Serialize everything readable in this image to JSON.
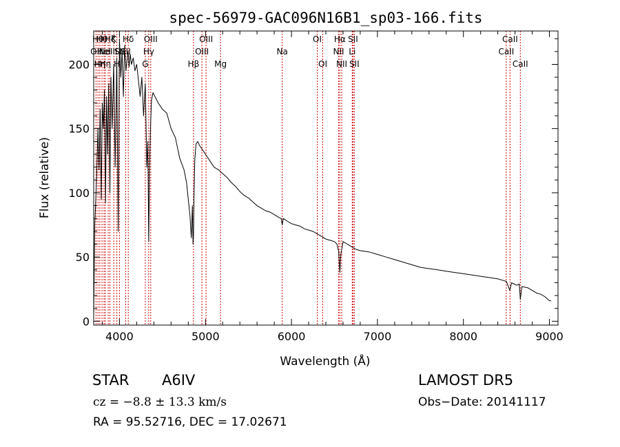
{
  "chart_data": {
    "type": "line",
    "title": "spec-56979-GAC096N16B1_sp03-166.fits",
    "xlabel": "Wavelength (Å)",
    "ylabel": "Flux (relative)",
    "xlim": [
      3700,
      9100
    ],
    "ylim": [
      -3,
      226
    ],
    "xticks": [
      4000,
      5000,
      6000,
      7000,
      8000,
      9000
    ],
    "yticks": [
      0,
      50,
      100,
      150,
      200
    ],
    "grid": false,
    "series": [
      {
        "x": [
          3700,
          3712,
          3725,
          3738,
          3750,
          3762,
          3775,
          3788,
          3800,
          3812,
          3825,
          3838,
          3850,
          3862,
          3875,
          3888,
          3900,
          3915,
          3932,
          3950,
          3968,
          3985,
          4000,
          4015,
          4030,
          4045,
          4060,
          4075,
          4090,
          4100,
          4112,
          4125,
          4140,
          4160,
          4180,
          4200,
          4220,
          4240,
          4260,
          4280,
          4300,
          4318,
          4330,
          4340,
          4350,
          4360,
          4372,
          4390,
          4420,
          4450,
          4500,
          4550,
          4600,
          4650,
          4700,
          4750,
          4780,
          4800,
          4820,
          4835,
          4848,
          4855,
          4861,
          4867,
          4875,
          4890,
          4910,
          4930,
          4960,
          5000,
          5050,
          5100,
          5150,
          5200,
          5250,
          5300,
          5350,
          5400,
          5450,
          5500,
          5550,
          5600,
          5650,
          5700,
          5750,
          5800,
          5850,
          5880,
          5893,
          5905,
          5950,
          6000,
          6050,
          6100,
          6150,
          6200,
          6250,
          6300,
          6350,
          6400,
          6450,
          6500,
          6530,
          6550,
          6563,
          6575,
          6600,
          6650,
          6700,
          6750,
          6800,
          6900,
          7000,
          7100,
          7200,
          7300,
          7400,
          7500,
          7600,
          7700,
          7800,
          7900,
          8000,
          8100,
          8200,
          8300,
          8400,
          8450,
          8500,
          8540,
          8560,
          8620,
          8650,
          8662,
          8680,
          8750,
          8800,
          8850,
          8900,
          8950,
          9000,
          9020
        ],
        "y": [
          3,
          75,
          95,
          120,
          150,
          118,
          165,
          95,
          170,
          150,
          180,
          92,
          175,
          130,
          185,
          100,
          190,
          150,
          200,
          120,
          205,
          70,
          220,
          190,
          210,
          175,
          215,
          195,
          205,
          210,
          198,
          208,
          200,
          205,
          195,
          200,
          188,
          175,
          190,
          160,
          185,
          120,
          140,
          62,
          120,
          150,
          172,
          178,
          174,
          170,
          165,
          162,
          150,
          143,
          127,
          118,
          108,
          95,
          82,
          65,
          90,
          60,
          67,
          100,
          125,
          138,
          140,
          137,
          134,
          130,
          125,
          120,
          118,
          115,
          112,
          108,
          105,
          101,
          98,
          96,
          93,
          90,
          88,
          86,
          85,
          83,
          81,
          80,
          75,
          80,
          78,
          76,
          75,
          74,
          72,
          71,
          70,
          68,
          66,
          64,
          63,
          62,
          60,
          54,
          38,
          52,
          62,
          60,
          58,
          56,
          55,
          54,
          52,
          50,
          48,
          46,
          44,
          42,
          41,
          40,
          39,
          38,
          37,
          36,
          35,
          34,
          33,
          32,
          31,
          24,
          30,
          28,
          29,
          17,
          27,
          26,
          24,
          22,
          21,
          19,
          16,
          16
        ]
      }
    ],
    "line_labels": [
      {
        "x": 3727,
        "label": "OII",
        "row": 1
      },
      {
        "x": 3750,
        "label": "Hθ",
        "row": 0
      },
      {
        "x": 3771,
        "label": "Hη",
        "row": 2
      },
      {
        "x": 3797,
        "label": "Hθ",
        "row": 0
      },
      {
        "x": 3820,
        "label": "HeI",
        "row": 1
      },
      {
        "x": 3835,
        "label": "Hη",
        "row": 2
      },
      {
        "x": 3869,
        "label": "NeIII",
        "row": 1
      },
      {
        "x": 3889,
        "label": "Hζ",
        "row": 0
      },
      {
        "x": 3934,
        "label": "K",
        "row": 0
      },
      {
        "x": 3969,
        "label": "H",
        "row": 2
      },
      {
        "x": 4000,
        "label": "SII",
        "row": 1
      },
      {
        "x": 4072,
        "label": "SII",
        "row": 1
      },
      {
        "x": 4102,
        "label": "Hδ",
        "row": 0
      },
      {
        "x": 4300,
        "label": "G",
        "row": 2
      },
      {
        "x": 4340,
        "label": "Hγ",
        "row": 1
      },
      {
        "x": 4363,
        "label": "OIII",
        "row": 0
      },
      {
        "x": 4861,
        "label": "Hβ",
        "row": 2
      },
      {
        "x": 4959,
        "label": "OIII",
        "row": 1
      },
      {
        "x": 5007,
        "label": "OIII",
        "row": 0
      },
      {
        "x": 5175,
        "label": "Mg",
        "row": 2
      },
      {
        "x": 5893,
        "label": "Na",
        "row": 1
      },
      {
        "x": 6300,
        "label": "OI",
        "row": 0
      },
      {
        "x": 6364,
        "label": "OI",
        "row": 2
      },
      {
        "x": 6548,
        "label": "NII",
        "row": 1
      },
      {
        "x": 6563,
        "label": "Hα",
        "row": 0
      },
      {
        "x": 6584,
        "label": "NII",
        "row": 2
      },
      {
        "x": 6707,
        "label": "Li",
        "row": 1
      },
      {
        "x": 6716,
        "label": "SII",
        "row": 0
      },
      {
        "x": 6731,
        "label": "SII",
        "row": 2
      },
      {
        "x": 8498,
        "label": "CaII",
        "row": 1
      },
      {
        "x": 8542,
        "label": "CaII",
        "row": 0
      },
      {
        "x": 8662,
        "label": "CaII",
        "row": 2
      }
    ]
  },
  "info": {
    "object_type": "STAR",
    "spectral_class": "A6IV",
    "redshift_line": "cz = −8.8 ± 13.3 km/s",
    "coords_line": "RA =  95.52716, DEC =  17.02671",
    "survey": "LAMOST  DR5",
    "obs_date_line": "Obs−Date: 20141117"
  },
  "colors": {
    "spectrum": "#000000",
    "line_markers": "#cc0000",
    "axes": "#000000",
    "background": "#ffffff"
  }
}
